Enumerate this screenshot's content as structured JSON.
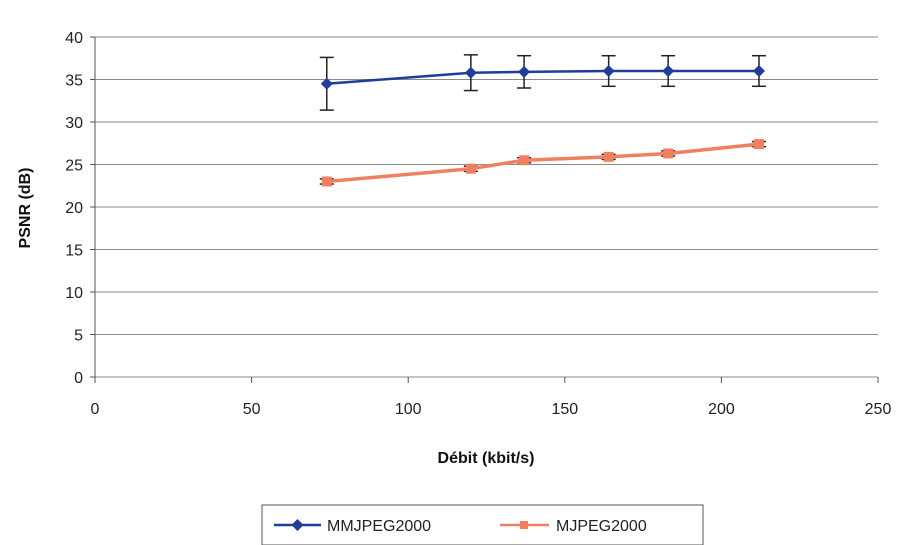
{
  "chart_data": {
    "type": "line",
    "title": "",
    "xlabel": "Débit (kbit/s)",
    "ylabel": "PSNR (dB)",
    "xlim": [
      0,
      250
    ],
    "ylim": [
      0,
      40
    ],
    "x_ticks": [
      "0",
      "50",
      "100",
      "150",
      "200",
      "250"
    ],
    "y_ticks": [
      "0",
      "5",
      "10",
      "15",
      "20",
      "25",
      "30",
      "35",
      "40"
    ],
    "grid": "horizontal",
    "legend_position": "bottom",
    "series": [
      {
        "name": "MMJPEG2000",
        "color": "#1f3d99",
        "marker": "diamond",
        "x": [
          74,
          120,
          137,
          164,
          183,
          212
        ],
        "y": [
          34.5,
          35.8,
          35.9,
          36.0,
          36.0,
          36.0
        ],
        "error": [
          3.1,
          2.1,
          1.9,
          1.8,
          1.8,
          1.8
        ]
      },
      {
        "name": "MJPEG2000",
        "color": "#f08060",
        "marker": "square",
        "x": [
          74,
          120,
          137,
          164,
          183,
          212
        ],
        "y": [
          23.0,
          24.5,
          25.5,
          25.9,
          26.3,
          27.4
        ],
        "error": [
          0.3,
          0.3,
          0.3,
          0.3,
          0.3,
          0.3
        ]
      }
    ]
  }
}
